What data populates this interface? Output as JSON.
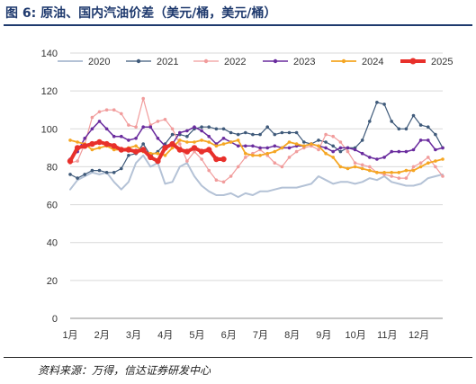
{
  "figure": {
    "title": "图 6:  原油、国内汽油价差（美元/桶，美元/桶）",
    "source": "资料来源：万得，信达证券研发中心"
  },
  "chart_data": {
    "type": "line",
    "title": "",
    "xlabel": "",
    "ylabel": "",
    "ylim": [
      0,
      140
    ],
    "yticks": [
      0,
      20,
      40,
      60,
      80,
      100,
      120,
      140
    ],
    "x_ticks": [
      "1月",
      "2月",
      "3月",
      "4月",
      "5月",
      "6月",
      "7月",
      "8月",
      "9月",
      "10月",
      "11月",
      "12月"
    ],
    "x_unit": "week",
    "xlim": [
      1,
      52
    ],
    "grid": "horizontal",
    "legend": "top",
    "series": [
      {
        "name": "2020",
        "color": "#b4c2d6",
        "marker": "none",
        "width": 2,
        "x": [
          1,
          2,
          3,
          4,
          5,
          6,
          7,
          8,
          9,
          10,
          11,
          12,
          13,
          14,
          15,
          16,
          17,
          18,
          19,
          20,
          21,
          22,
          23,
          24,
          25,
          26,
          27,
          28,
          29,
          30,
          31,
          32,
          33,
          34,
          35,
          36,
          37,
          38,
          39,
          40,
          41,
          42,
          43,
          44,
          45,
          46,
          47,
          48,
          49,
          50,
          51,
          52
        ],
        "y": [
          68,
          73,
          75,
          77,
          76,
          77,
          72,
          68,
          72,
          82,
          86,
          80,
          82,
          71,
          72,
          80,
          82,
          75,
          70,
          67,
          65,
          65,
          66,
          64,
          66,
          65,
          67,
          67,
          68,
          69,
          69,
          69,
          70,
          71,
          75,
          73,
          71,
          72,
          72,
          71,
          72,
          74,
          73,
          75,
          72,
          71,
          70,
          70,
          71,
          74,
          75,
          76
        ]
      },
      {
        "name": "2021",
        "color": "#3f5a7a",
        "marker": "dot",
        "width": 1.2,
        "x": [
          1,
          2,
          3,
          4,
          5,
          6,
          7,
          8,
          9,
          10,
          11,
          12,
          13,
          14,
          15,
          16,
          17,
          18,
          19,
          20,
          21,
          22,
          23,
          24,
          25,
          26,
          27,
          28,
          29,
          30,
          31,
          32,
          33,
          34,
          35,
          36,
          37,
          38,
          39,
          40,
          41,
          42,
          43,
          44,
          45,
          46,
          47,
          48,
          49,
          50,
          51,
          52
        ],
        "y": [
          76,
          74,
          76,
          78,
          78,
          77,
          77,
          79,
          86,
          87,
          92,
          86,
          88,
          92,
          97,
          97,
          96,
          100,
          101,
          101,
          100,
          100,
          98,
          97,
          98,
          97,
          97,
          101,
          97,
          98,
          98,
          98,
          93,
          92,
          94,
          93,
          91,
          88,
          90,
          90,
          94,
          104,
          114,
          113,
          104,
          100,
          100,
          107,
          102,
          101,
          97,
          90
        ]
      },
      {
        "name": "2022",
        "color": "#f19c9c",
        "marker": "dot",
        "width": 1.2,
        "x": [
          1,
          2,
          3,
          4,
          5,
          6,
          7,
          8,
          9,
          10,
          11,
          12,
          13,
          14,
          15,
          16,
          17,
          18,
          19,
          20,
          21,
          22,
          23,
          24,
          25,
          26,
          27,
          28,
          29,
          30,
          31,
          32,
          33,
          34,
          35,
          36,
          37,
          38,
          39,
          40,
          41,
          42,
          43,
          44,
          45,
          46,
          47,
          48,
          49,
          50,
          51,
          52
        ],
        "y": [
          82,
          83,
          92,
          106,
          109,
          110,
          110,
          108,
          102,
          101,
          116,
          102,
          104,
          105,
          100,
          92,
          83,
          88,
          84,
          78,
          73,
          72,
          75,
          80,
          85,
          87,
          89,
          86,
          82,
          80,
          85,
          88,
          90,
          91,
          89,
          97,
          96,
          93,
          88,
          82,
          81,
          80,
          77,
          76,
          75,
          74,
          74,
          80,
          82,
          85,
          80,
          75
        ]
      },
      {
        "name": "2023",
        "color": "#6a2c9e",
        "marker": "dot",
        "width": 1.5,
        "x": [
          1,
          2,
          3,
          4,
          5,
          6,
          7,
          8,
          9,
          10,
          11,
          12,
          13,
          14,
          15,
          16,
          17,
          18,
          19,
          20,
          21,
          22,
          23,
          24,
          25,
          26,
          27,
          28,
          29,
          30,
          31,
          32,
          33,
          34,
          35,
          36,
          37,
          38,
          39,
          40,
          41,
          42,
          43,
          44,
          45,
          46,
          47,
          48,
          49,
          50,
          51,
          52
        ],
        "y": [
          84,
          88,
          95,
          100,
          104,
          100,
          96,
          96,
          94,
          95,
          101,
          101,
          95,
          91,
          92,
          98,
          99,
          101,
          99,
          96,
          92,
          95,
          93,
          91,
          91,
          91,
          90,
          90,
          91,
          90,
          90,
          91,
          91,
          92,
          91,
          90,
          88,
          90,
          90,
          89,
          87,
          85,
          84,
          85,
          88,
          88,
          88,
          89,
          94,
          94,
          89,
          90
        ]
      },
      {
        "name": "2024",
        "color": "#f5a623",
        "marker": "dot",
        "width": 1.8,
        "x": [
          1,
          2,
          3,
          4,
          5,
          6,
          7,
          8,
          9,
          10,
          11,
          12,
          13,
          14,
          15,
          16,
          17,
          18,
          19,
          20,
          21,
          22,
          23,
          24,
          25,
          26,
          27,
          28,
          29,
          30,
          31,
          32,
          33,
          34,
          35,
          36,
          37,
          38,
          39,
          40,
          41,
          42,
          43,
          44,
          45,
          46,
          47,
          48,
          49,
          50,
          51,
          52
        ],
        "y": [
          94,
          93,
          92,
          89,
          90,
          91,
          89,
          89,
          90,
          91,
          88,
          87,
          87,
          86,
          90,
          94,
          93,
          93,
          94,
          93,
          91,
          92,
          93,
          94,
          87,
          86,
          86,
          87,
          88,
          90,
          93,
          92,
          91,
          92,
          91,
          87,
          85,
          80,
          79,
          80,
          79,
          78,
          77,
          77,
          77,
          77,
          78,
          78,
          80,
          82,
          83,
          84
        ]
      },
      {
        "name": "2025",
        "color": "#e8302b",
        "marker": "dot",
        "width": 4,
        "x": [
          1,
          2,
          3,
          4,
          5,
          6,
          7,
          8,
          9,
          10,
          11,
          12,
          13,
          14,
          15,
          16,
          17,
          18,
          19,
          20,
          21,
          22
        ],
        "y": [
          83,
          90,
          91,
          92,
          93,
          92,
          91,
          89,
          89,
          88,
          89,
          85,
          83,
          90,
          92,
          89,
          88,
          90,
          88,
          89,
          84,
          84
        ]
      }
    ]
  }
}
